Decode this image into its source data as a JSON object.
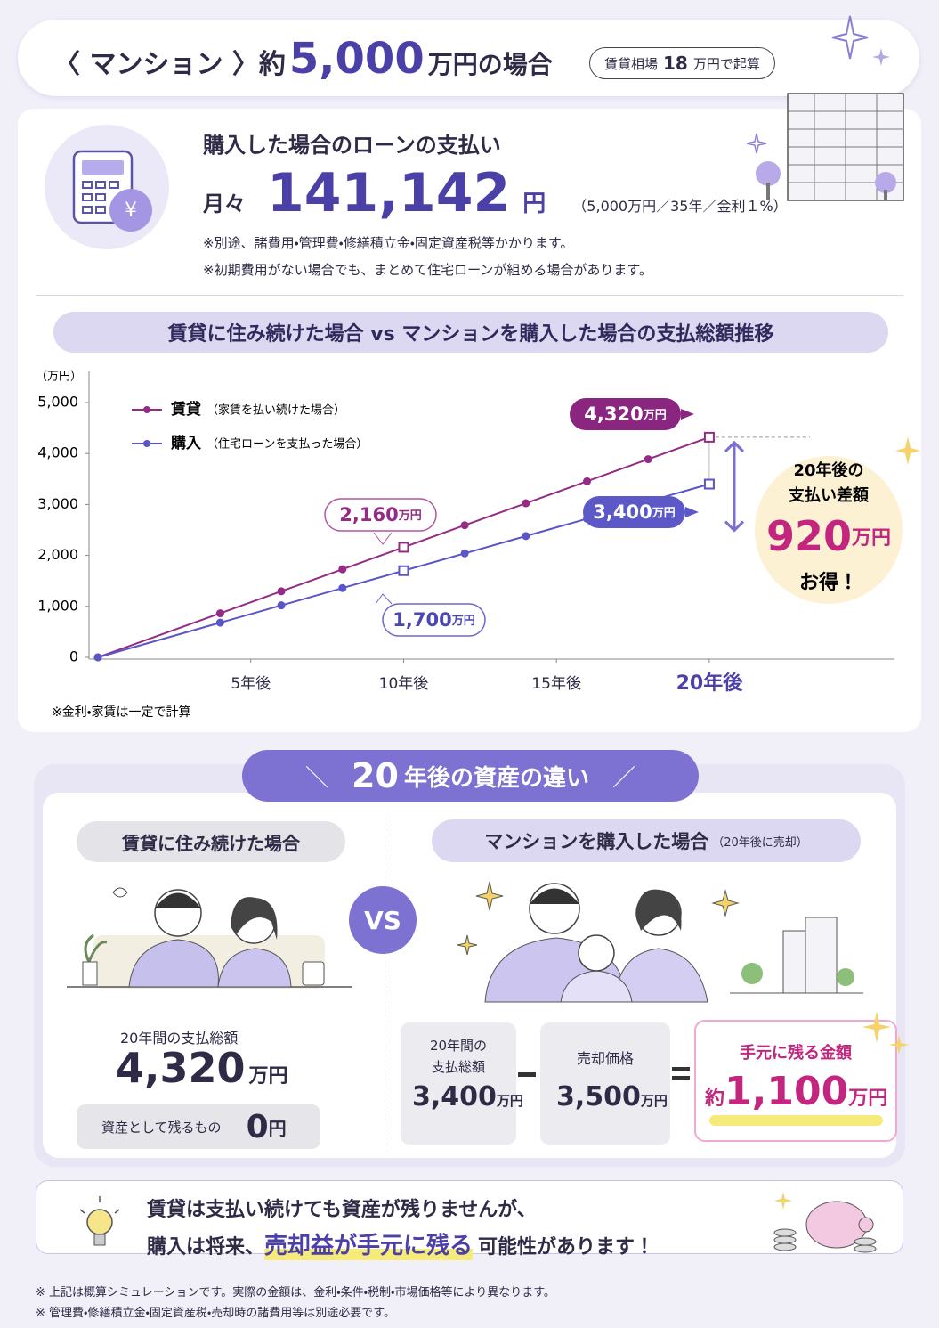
{
  "header": {
    "prefix": "〈 マンション 〉約",
    "amount": "5,000",
    "suffix": "万円の場合",
    "badge_label": "賃貸相場",
    "badge_amount": "18",
    "badge_suffix": "万円で起算"
  },
  "loan": {
    "title": "購入した場合のローンの支払い",
    "monthly_label": "月々",
    "amount": "141,142",
    "unit": "円",
    "terms": "（5,000万円／35年／金利１%）",
    "notes": [
      "※別途、諸費用・管理費・修繕積立金・固定資産税等かかります。",
      "※初期費用がない場合でも、まとめて住宅ローンが組める場合があります。"
    ]
  },
  "chart_data": {
    "type": "line",
    "title": "賃貸に住み続けた場合 vs マンションを購入した場合の支払総額推移",
    "y_unit": "（万円）",
    "x": [
      0,
      4,
      6,
      8,
      10,
      12,
      14,
      16,
      18,
      20
    ],
    "series": [
      {
        "name": "賃貸",
        "note": "（家賃を払い続けた場合）",
        "color": "#962b86",
        "values": [
          0,
          864,
          1296,
          1728,
          2160,
          2592,
          3024,
          3456,
          3888,
          4320
        ]
      },
      {
        "name": "購入",
        "note": "（住宅ローンを支払った場合）",
        "color": "#5a55c8",
        "values": [
          0,
          680,
          1020,
          1360,
          1700,
          2040,
          2380,
          2720,
          3060,
          3400
        ]
      }
    ],
    "xlim": [
      0,
      26
    ],
    "xticks": [
      {
        "value": 5,
        "label": "5年後"
      },
      {
        "value": 10,
        "label": "10年後"
      },
      {
        "value": 15,
        "label": "15年後"
      },
      {
        "value": 20,
        "label": "20年後"
      }
    ],
    "ylim": [
      0,
      5000
    ],
    "yticks": [
      0,
      {
        "value": 1000,
        "label": "1,000"
      },
      {
        "value": 2000,
        "label": "2,000"
      },
      {
        "value": 3000,
        "label": "3,000"
      },
      {
        "value": 4000,
        "label": "4,000"
      },
      {
        "value": 5000,
        "label": "5,000"
      }
    ],
    "callouts": [
      {
        "text": "4,320",
        "unit": "万円"
      },
      {
        "text": "2,160",
        "unit": "万円"
      },
      {
        "text": "3,400",
        "unit": "万円"
      },
      {
        "text": "1,700",
        "unit": "万円"
      }
    ],
    "difference": {
      "line1": "20年後の",
      "line2": "支払い差額",
      "amount": "920",
      "unit": "万円",
      "tail": "お得！"
    },
    "note": "※金利・家賃は一定で計算"
  },
  "assets": {
    "title_num": "20",
    "title_text": "年後の資産の違い",
    "vs": "VS",
    "rent": {
      "label": "賃貸に住み続けた場合",
      "total_label": "20年間の支払総額",
      "total": "4,320",
      "unit": "万円",
      "remain_label": "資産として残るもの",
      "remain": "0",
      "remain_unit": "円"
    },
    "buy": {
      "label": "マンションを購入した場合",
      "label_note": "（20年後に売却）",
      "paid_label": [
        "20年間の",
        "支払総額"
      ],
      "paid": "3,400",
      "paid_unit": "万円",
      "sale_label": "売却価格",
      "sale": "3,500",
      "sale_unit": "万円",
      "result_label": "手元に残る金額",
      "result_prefix": "約",
      "result": "1,100",
      "result_unit": "万円"
    }
  },
  "message": {
    "line1": "賃貸は支払い続けても資産が残りませんが、",
    "line2_start": "購入は将来、",
    "line2_highlight": "売却益が手元に残る",
    "line2_end": "可能性があります！"
  },
  "footnotes": [
    "※ 上記は概算シミュレーションです。実際の金額は、金利・条件・税制・市場価格等により異なります。",
    "※ 管理費・修繕積立金・固定資産税・売却時の諸費用等は別途必要です。"
  ]
}
